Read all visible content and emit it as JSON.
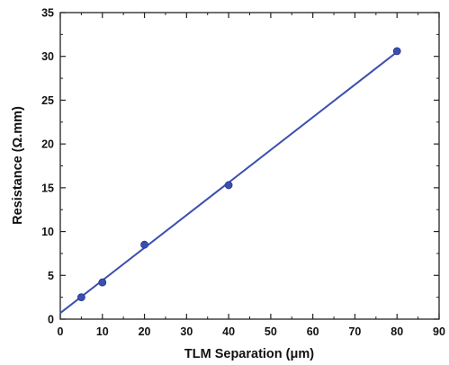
{
  "chart_data": {
    "type": "scatter",
    "title": "",
    "xlabel": "TLM Separation (μm)",
    "ylabel": "Resistance (Ω.mm)",
    "xlim": [
      0,
      90
    ],
    "ylim": [
      0,
      35
    ],
    "x_ticks": [
      0,
      10,
      20,
      30,
      40,
      50,
      60,
      70,
      80,
      90
    ],
    "y_ticks": [
      0,
      5,
      10,
      15,
      20,
      25,
      30,
      35
    ],
    "x_tick_labels": [
      "0",
      "10",
      "20",
      "30",
      "40",
      "50",
      "60",
      "70",
      "80",
      "90"
    ],
    "y_tick_labels": [
      "0",
      "5",
      "10",
      "15",
      "20",
      "25",
      "30",
      "35"
    ],
    "grid": false,
    "legend": "none",
    "color": "#3b4fb0",
    "series": [
      {
        "type": "scatter",
        "x": [
          5,
          10,
          20,
          40,
          80
        ],
        "y": [
          2.5,
          4.2,
          8.5,
          15.3,
          30.6
        ]
      }
    ],
    "fit_line": {
      "x": [
        0,
        80
      ],
      "y": [
        0.7,
        30.5
      ]
    }
  }
}
